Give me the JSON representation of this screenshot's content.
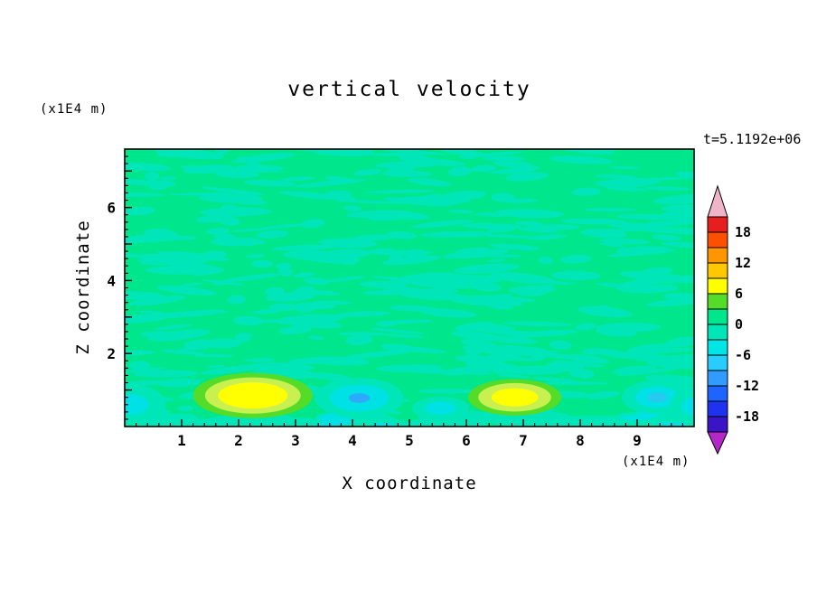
{
  "title": "vertical velocity",
  "time_label": "t=5.1192e+06",
  "axes": {
    "x_label": "X coordinate",
    "y_label": "Z coordinate",
    "x_unit": "(x1E4 m)",
    "y_unit": "(x1E4 m)",
    "x_tick_labels": [
      "1",
      "2",
      "3",
      "4",
      "5",
      "6",
      "7",
      "8",
      "9"
    ],
    "y_tick_labels": [
      "2",
      "4",
      "6"
    ]
  },
  "chart_data": {
    "type": "contour",
    "title": "vertical velocity",
    "xlabel": "X coordinate",
    "ylabel": "Z coordinate",
    "x_unit": "(x1E4 m)",
    "y_unit": "(x1E4 m)",
    "time": "t=5.1192e+06",
    "xlim": [
      0,
      10
    ],
    "ylim": [
      0,
      7.6
    ],
    "x_ticks": [
      1,
      2,
      3,
      4,
      5,
      6,
      7,
      8,
      9
    ],
    "y_ticks": [
      2,
      4,
      6
    ],
    "grid": false,
    "legend_position": "right-colorbar",
    "contour_interval": 3,
    "colorbar": {
      "min": -21,
      "max": 21,
      "step": 3,
      "labels": [
        18,
        12,
        6,
        0,
        -6,
        -12,
        -18
      ],
      "segment_colors_bottom_to_top": [
        "#3C14C8",
        "#1E32F0",
        "#1E64FF",
        "#329BFF",
        "#28CDFF",
        "#00E6E6",
        "#00E6B9",
        "#00E68C",
        "#55DC28",
        "#FFFF00",
        "#FFC800",
        "#FF9600",
        "#FF5000",
        "#E61E1E"
      ],
      "under_arrow_color": "#B428C8",
      "over_arrow_color": "#F0B4C8"
    },
    "field": {
      "background_value_band": "0 to 3",
      "background_color": "#00E68C",
      "texture_value_band": "-3 to 0",
      "texture_color": "#00E6B9",
      "texture_density": 380,
      "features": [
        {
          "name": "updraft-maximum-left",
          "x": 2.25,
          "z": 0.85,
          "rx": 1.05,
          "rz": 0.62,
          "peak": 9,
          "rings": [
            {
              "color": "#55DC28",
              "scale": 1
            },
            {
              "color": "#C8F050",
              "scale": 0.8
            },
            {
              "color": "#FFFF00",
              "scale": 0.58
            }
          ]
        },
        {
          "name": "updraft-maximum-right",
          "x": 6.85,
          "z": 0.8,
          "rx": 0.82,
          "rz": 0.5,
          "peak": 8,
          "rings": [
            {
              "color": "#55DC28",
              "scale": 1
            },
            {
              "color": "#C8F050",
              "scale": 0.78
            },
            {
              "color": "#FFFF00",
              "scale": 0.5
            }
          ]
        },
        {
          "name": "downdraft-center",
          "x": 4.12,
          "z": 0.78,
          "rx": 0.78,
          "rz": 0.55,
          "peak": -10,
          "rings": [
            {
              "color": "#00E6B9",
              "scale": 1
            },
            {
              "color": "#00E1E6",
              "scale": 0.66
            },
            {
              "color": "#2DAAFF",
              "scale": 0.24
            }
          ]
        },
        {
          "name": "downdraft-small-mid",
          "x": 5.55,
          "z": 0.5,
          "rx": 0.5,
          "rz": 0.32,
          "peak": -5,
          "rings": [
            {
              "color": "#00E6B9",
              "scale": 1
            },
            {
              "color": "#00E1E6",
              "scale": 0.55
            }
          ]
        },
        {
          "name": "downdraft-right",
          "x": 9.35,
          "z": 0.8,
          "rx": 0.62,
          "rz": 0.46,
          "peak": -8,
          "rings": [
            {
              "color": "#00E6B9",
              "scale": 1
            },
            {
              "color": "#00E1E6",
              "scale": 0.62
            },
            {
              "color": "#28C8F0",
              "scale": 0.28
            }
          ]
        },
        {
          "name": "downdraft-right-edge",
          "x": 9.98,
          "z": 0.55,
          "rx": 0.4,
          "rz": 0.5,
          "peak": -5,
          "rings": [
            {
              "color": "#00E6B9",
              "scale": 1
            },
            {
              "color": "#00E1E6",
              "scale": 0.5
            }
          ]
        },
        {
          "name": "downdraft-left-edge",
          "x": 0.12,
          "z": 0.6,
          "rx": 0.6,
          "rz": 0.55,
          "peak": -5,
          "rings": [
            {
              "color": "#00E6B9",
              "scale": 1
            },
            {
              "color": "#00E1E6",
              "scale": 0.5
            }
          ]
        }
      ]
    }
  }
}
